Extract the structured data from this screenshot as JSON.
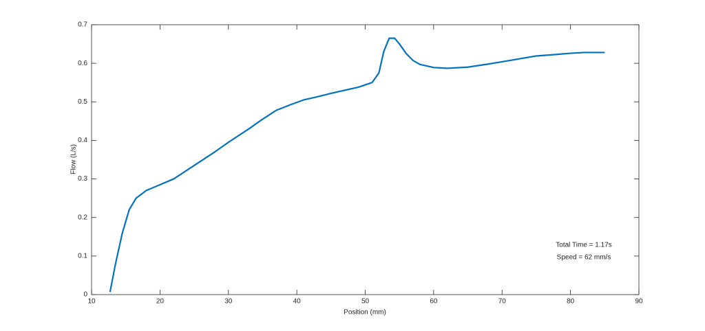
{
  "chart_data": {
    "type": "line",
    "xlabel": "Position (mm)",
    "ylabel": "Flow (L/s)",
    "x": [
      12.7,
      13.5,
      14.5,
      15.5,
      16.5,
      18,
      20,
      22,
      25,
      28,
      30,
      33,
      35,
      37,
      39,
      41,
      43,
      45,
      47,
      49,
      51,
      52,
      52.7,
      53.5,
      54.3,
      55,
      56,
      57,
      58,
      60,
      62,
      65,
      68,
      70,
      72,
      75,
      78,
      80,
      82,
      85
    ],
    "series": [
      {
        "name": "Flow",
        "color": "#0072bd",
        "values": [
          0.007,
          0.08,
          0.16,
          0.22,
          0.25,
          0.27,
          0.285,
          0.3,
          0.335,
          0.37,
          0.395,
          0.43,
          0.455,
          0.478,
          0.492,
          0.505,
          0.513,
          0.522,
          0.53,
          0.538,
          0.55,
          0.575,
          0.63,
          0.665,
          0.665,
          0.65,
          0.625,
          0.607,
          0.597,
          0.589,
          0.587,
          0.59,
          0.598,
          0.604,
          0.61,
          0.619,
          0.623,
          0.626,
          0.628,
          0.628
        ]
      }
    ],
    "xlim": [
      10,
      90
    ],
    "xticks": [
      10,
      20,
      30,
      40,
      50,
      60,
      70,
      80,
      90
    ],
    "ylim": [
      0,
      0.7
    ],
    "yticks": [
      0,
      0.1,
      0.2,
      0.3,
      0.4,
      0.5,
      0.6,
      0.7
    ],
    "annotations": [
      "Total Time = 1.17s",
      "Speed = 62 mm/s"
    ]
  }
}
